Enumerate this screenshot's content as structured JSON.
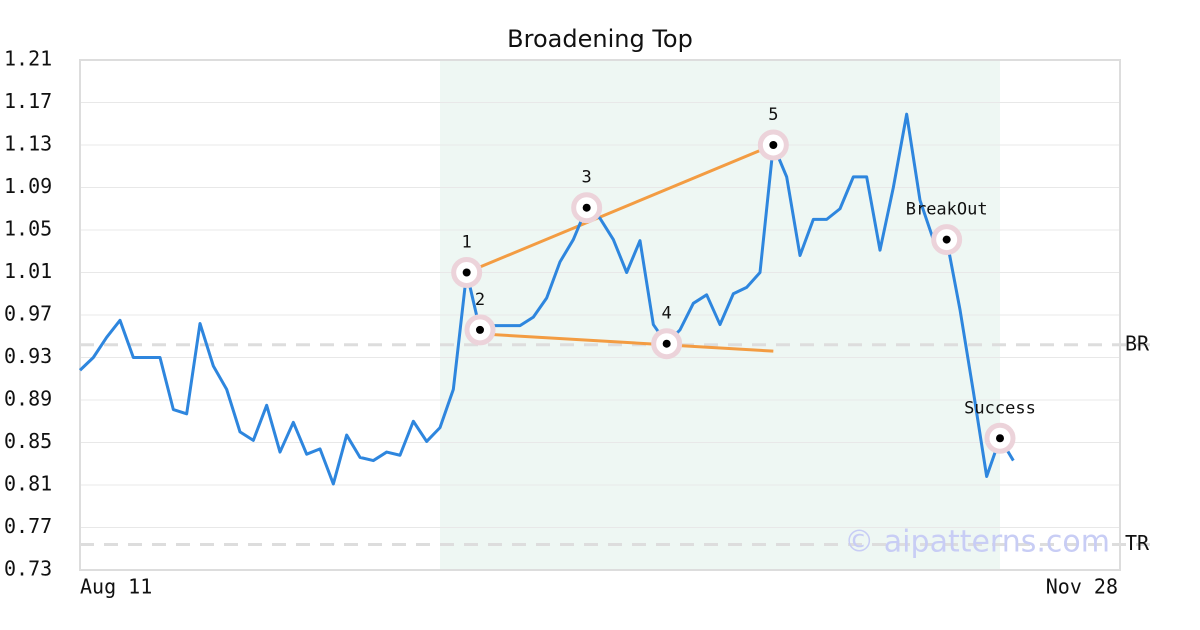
{
  "chart_data": {
    "type": "line",
    "title": "Broadening Top",
    "categories": [
      "Aug 11",
      null,
      null,
      null,
      null,
      null,
      null,
      null,
      null,
      null,
      null,
      null,
      null,
      null,
      null,
      null,
      null,
      null,
      null,
      null,
      null,
      null,
      null,
      null,
      null,
      null,
      null,
      null,
      null,
      null,
      null,
      null,
      null,
      null,
      null,
      null,
      null,
      null,
      null,
      null,
      null,
      null,
      null,
      null,
      null,
      null,
      null,
      null,
      null,
      null,
      null,
      null,
      null,
      null,
      null,
      null,
      null,
      null,
      null,
      null,
      null,
      null,
      null,
      null,
      null,
      null,
      null,
      null,
      null,
      null,
      null,
      null,
      null,
      null,
      null,
      null,
      null,
      null,
      "Nov 28"
    ],
    "series": [
      {
        "color": "#2e86de",
        "values": [
          0.918,
          0.93,
          0.949,
          0.965,
          0.93,
          0.93,
          0.93,
          0.881,
          0.877,
          0.962,
          0.922,
          0.9,
          0.86,
          0.852,
          0.885,
          0.841,
          0.869,
          0.839,
          0.844,
          0.811,
          0.857,
          0.836,
          0.833,
          0.841,
          0.838,
          0.87,
          0.851,
          0.864,
          0.9,
          1.01,
          0.956,
          0.96,
          0.96,
          0.96,
          0.968,
          0.986,
          1.02,
          1.041,
          1.071,
          1.061,
          1.041,
          1.01,
          1.04,
          0.961,
          0.943,
          0.956,
          0.981,
          0.989,
          0.961,
          0.99,
          0.996,
          1.01,
          1.13,
          1.1,
          1.026,
          1.06,
          1.06,
          1.07,
          1.1,
          1.1,
          1.031,
          1.09,
          1.159,
          1.078,
          1.041,
          1.041,
          0.975,
          0.898,
          0.818,
          0.854,
          0.833,
          null,
          null,
          null,
          null,
          null,
          null,
          null,
          null
        ]
      }
    ],
    "ylim": [
      0.73,
      1.21
    ],
    "yticks": [
      0.73,
      0.77,
      0.81,
      0.85,
      0.89,
      0.93,
      0.97,
      1.01,
      1.05,
      1.09,
      1.13,
      1.17,
      1.21
    ],
    "grid": true,
    "shade_range": [
      27,
      69
    ],
    "shade_color": "#eef7f3",
    "points": [
      {
        "label": "1",
        "index": 29,
        "value": 1.01
      },
      {
        "label": "2",
        "index": 30,
        "value": 0.956
      },
      {
        "label": "3",
        "index": 38,
        "value": 1.071
      },
      {
        "label": "4",
        "index": 44,
        "value": 0.943
      },
      {
        "label": "5",
        "index": 52,
        "value": 1.13
      },
      {
        "label": "BreakOut",
        "index": 65,
        "value": 1.041
      },
      {
        "label": "Success",
        "index": 69,
        "value": 0.854
      }
    ],
    "trendlines": [
      {
        "color": "#f39c42",
        "x": [
          29,
          52
        ],
        "y": [
          1.01,
          1.13
        ]
      },
      {
        "color": "#f39c42",
        "x": [
          29,
          52
        ],
        "y": [
          0.953,
          0.936
        ]
      }
    ],
    "levels": [
      {
        "label": "BR",
        "value": 0.942
      },
      {
        "label": "TR",
        "value": 0.754
      }
    ],
    "watermark": "© aipatterns.com"
  }
}
